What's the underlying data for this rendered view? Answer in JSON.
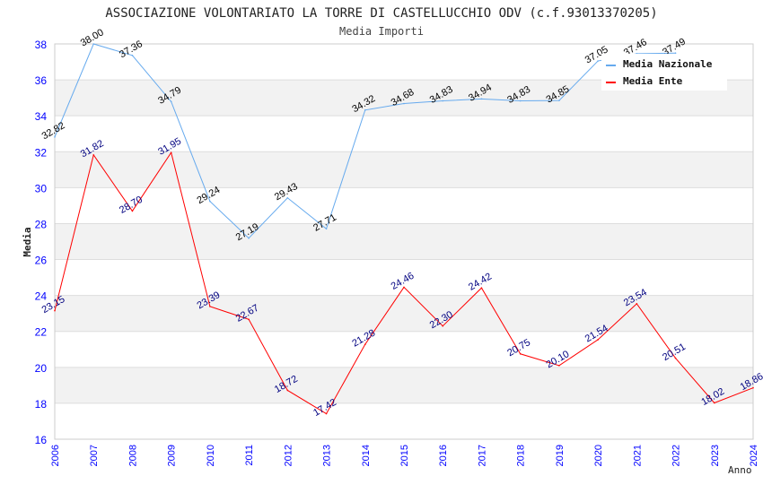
{
  "chart_data": {
    "type": "line",
    "title": "ASSOCIAZIONE VOLONTARIATO LA TORRE DI CASTELLUCCHIO ODV (c.f.93013370205)",
    "subtitle": "Media Importi",
    "xlabel": "Anno",
    "ylabel": "Media",
    "ylim": [
      16,
      38
    ],
    "yticks": [
      "16",
      "18",
      "20",
      "22",
      "24",
      "26",
      "28",
      "30",
      "32",
      "34",
      "36",
      "38"
    ],
    "x": [
      "2006",
      "2007",
      "2008",
      "2009",
      "2010",
      "2011",
      "2012",
      "2013",
      "2014",
      "2015",
      "2016",
      "2017",
      "2018",
      "2019",
      "2020",
      "2021",
      "2022",
      "2023",
      "2024"
    ],
    "grid": true,
    "legend_position": "top-right",
    "series": [
      {
        "name": "Media Nazionale",
        "color": "#66aaee",
        "label_color": "#000000",
        "values": [
          32.82,
          38.0,
          37.36,
          34.79,
          29.24,
          27.19,
          29.43,
          27.71,
          34.32,
          34.68,
          34.83,
          34.94,
          34.83,
          34.85,
          37.05,
          37.46,
          37.49,
          null,
          null
        ],
        "labels": [
          "32.82",
          "38.00",
          "37.36",
          "34.79",
          "29.24",
          "27.19",
          "29.43",
          "27.71",
          "34.32",
          "34.68",
          "34.83",
          "34.94",
          "34.83",
          "34.85",
          "37.05",
          "37.46",
          "37.49",
          null,
          null
        ]
      },
      {
        "name": "Media Ente",
        "color": "#ff0000",
        "label_color": "#000080",
        "values": [
          23.15,
          31.82,
          28.7,
          31.95,
          23.39,
          22.67,
          18.72,
          17.42,
          21.28,
          24.46,
          22.3,
          24.42,
          20.75,
          20.1,
          21.54,
          23.54,
          20.51,
          18.02,
          18.86
        ],
        "labels": [
          "23.15",
          "31.82",
          "28.70",
          "31.95",
          "23.39",
          "22.67",
          "18.72",
          "17.42",
          "21.28",
          "24.46",
          "22.30",
          "24.42",
          "20.75",
          "20.10",
          "21.54",
          "23.54",
          "20.51",
          "18.02",
          "18.86"
        ]
      }
    ]
  }
}
